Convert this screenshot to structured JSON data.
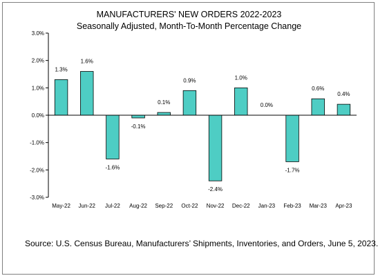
{
  "chart_data": {
    "type": "bar",
    "title": "MANUFACTURERS' NEW ORDERS 2022-2023",
    "subtitle": "Seasonally Adjusted,  Month-To-Month Percentage Change",
    "categories": [
      "May-22",
      "Jun-22",
      "Jul-22",
      "Aug-22",
      "Sep-22",
      "Oct-22",
      "Nov-22",
      "Dec-22",
      "Jan-23",
      "Feb-23",
      "Mar-23",
      "Apr-23"
    ],
    "values": [
      1.3,
      1.6,
      -1.6,
      -0.1,
      0.1,
      0.9,
      -2.4,
      1.0,
      0.0,
      -1.7,
      0.6,
      0.4
    ],
    "data_labels": [
      "1.3%",
      "1.6%",
      "-1.6%",
      "-0.1%",
      "0.1%",
      "0.9%",
      "-2.4%",
      "1.0%",
      "0.0%",
      "-1.7%",
      "0.6%",
      "0.4%"
    ],
    "y_ticks": [
      3,
      2,
      1,
      0,
      -1,
      -2,
      -3
    ],
    "y_tick_labels": [
      "3.0%",
      "2.0%",
      "1.0%",
      "0.0%",
      "-1.0%",
      "-2.0%",
      "-3.0%"
    ],
    "ylim": [
      -3,
      3
    ],
    "xlabel": "",
    "ylabel": "",
    "grid": false,
    "bar_color": "#4ECDC4",
    "bar_edge_color": "#000000"
  },
  "source": "Source: U.S. Census Bureau, Manufacturers’ Shipments, Inventories, and Orders, June 5, 2023."
}
